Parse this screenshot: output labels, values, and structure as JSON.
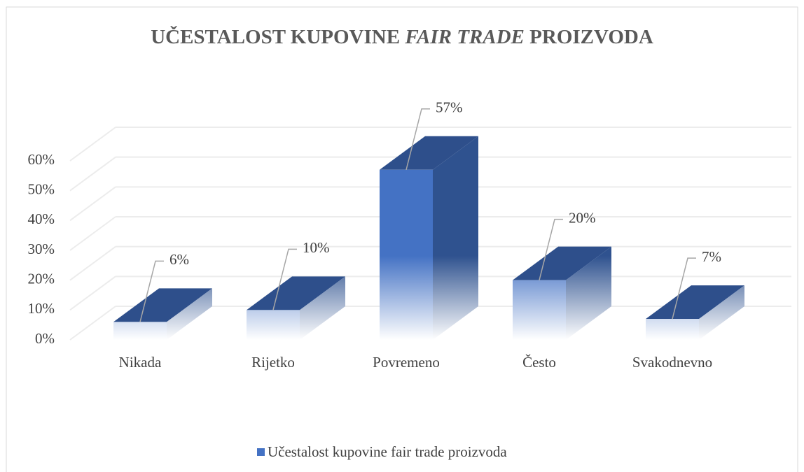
{
  "chart_data": {
    "type": "bar3d",
    "title_parts": [
      "UČESTALOST KUPOVINE ",
      "FAIR TRADE",
      " PROIZVODA"
    ],
    "categories": [
      "Nikada",
      "Rijetko",
      "Povremeno",
      "Često",
      "Svakodnevno"
    ],
    "series": [
      {
        "name": "Učestalost kupovine fair trade proizvoda",
        "color": "#4472c4",
        "values": [
          6,
          10,
          57,
          20,
          7
        ],
        "value_labels": [
          "6%",
          "10%",
          "57%",
          "20%",
          "7%"
        ]
      }
    ],
    "ylim": [
      0,
      60
    ],
    "yticks": [
      {
        "value": 0,
        "label": "0%"
      },
      {
        "value": 10,
        "label": "10%"
      },
      {
        "value": 20,
        "label": "20%"
      },
      {
        "value": 30,
        "label": "30%"
      },
      {
        "value": 40,
        "label": "40%"
      },
      {
        "value": 50,
        "label": "50%"
      },
      {
        "value": 60,
        "label": "60%"
      }
    ],
    "grid": true,
    "legend": "bottom"
  }
}
